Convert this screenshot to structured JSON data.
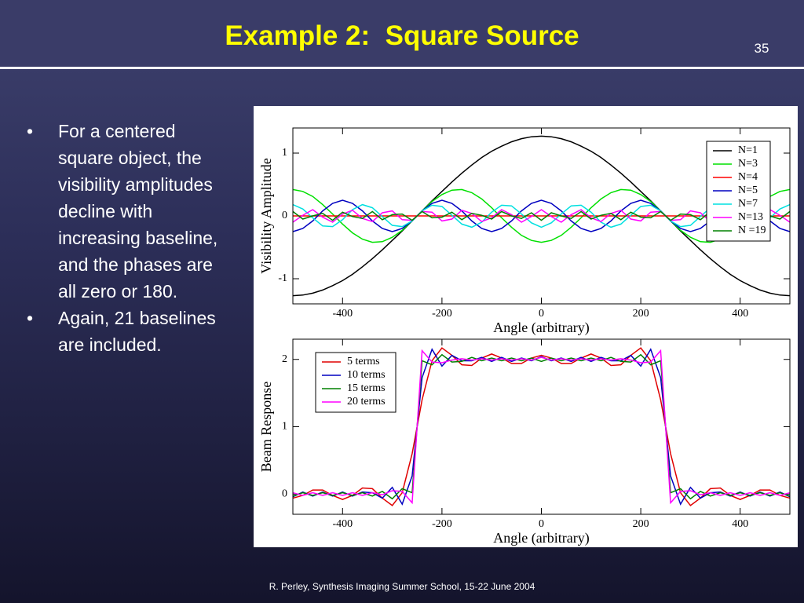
{
  "header": {
    "title": "Example 2:  Square Source",
    "page_number": "35"
  },
  "bullets": [
    "For a centered square object, the visibility amplitudes decline with increasing baseline, and the phases are all zero or 180.",
    "Again, 21 baselines are included."
  ],
  "footer": "R. Perley, Synthesis Imaging Summer School, 15-22 June 2004",
  "chart_data": [
    {
      "type": "line",
      "xlabel": "Angle (arbitrary)",
      "ylabel": "Visibility Amplitude",
      "xlim": [
        -500,
        500
      ],
      "ylim": [
        -1.4,
        1.4
      ],
      "xticks": [
        -400,
        -200,
        0,
        200,
        400
      ],
      "yticks": [
        -1,
        0,
        1
      ],
      "legend": "upper right",
      "x": [
        -500,
        -480,
        -460,
        -440,
        -420,
        -400,
        -380,
        -360,
        -340,
        -320,
        -300,
        -280,
        -260,
        -240,
        -220,
        -200,
        -180,
        -160,
        -140,
        -120,
        -100,
        -80,
        -60,
        -40,
        -20,
        0,
        20,
        40,
        60,
        80,
        100,
        120,
        140,
        160,
        180,
        200,
        220,
        240,
        260,
        280,
        300,
        320,
        340,
        360,
        380,
        400,
        420,
        440,
        460,
        480,
        500
      ],
      "series": [
        {
          "name": "N=1",
          "color": "#000000",
          "values": [
            -1.27,
            -1.26,
            -1.23,
            -1.18,
            -1.11,
            -1.03,
            -0.93,
            -0.81,
            -0.68,
            -0.54,
            -0.39,
            -0.24,
            -0.08,
            0.08,
            0.24,
            0.39,
            0.54,
            0.68,
            0.81,
            0.93,
            1.03,
            1.11,
            1.18,
            1.23,
            1.26,
            1.27,
            1.26,
            1.23,
            1.18,
            1.11,
            1.03,
            0.93,
            0.81,
            0.68,
            0.54,
            0.39,
            0.24,
            0.08,
            -0.08,
            -0.24,
            -0.39,
            -0.54,
            -0.68,
            -0.81,
            -0.93,
            -1.03,
            -1.11,
            -1.18,
            -1.23,
            -1.26,
            -1.27
          ]
        },
        {
          "name": "N=3",
          "color": "#00e000",
          "values": [
            0.42,
            0.39,
            0.31,
            0.18,
            0.03,
            -0.13,
            -0.27,
            -0.37,
            -0.42,
            -0.41,
            -0.34,
            -0.23,
            -0.08,
            0.08,
            0.23,
            0.34,
            0.41,
            0.42,
            0.37,
            0.27,
            0.13,
            -0.03,
            -0.18,
            -0.31,
            -0.39,
            -0.42,
            -0.39,
            -0.31,
            -0.18,
            -0.03,
            0.13,
            0.27,
            0.37,
            0.42,
            0.41,
            0.34,
            0.23,
            0.08,
            -0.08,
            -0.23,
            -0.34,
            -0.41,
            -0.42,
            -0.37,
            -0.27,
            -0.13,
            0.03,
            0.18,
            0.31,
            0.39,
            0.42
          ]
        },
        {
          "name": "N=4",
          "color": "#ff0000",
          "values": [
            0,
            0,
            0,
            0,
            0,
            0,
            0,
            0,
            0,
            0,
            0,
            0,
            0,
            0,
            0,
            0,
            0,
            0,
            0,
            0,
            0,
            0,
            0,
            0,
            0,
            0,
            0,
            0,
            0,
            0,
            0,
            0,
            0,
            0,
            0,
            0,
            0,
            0,
            0,
            0,
            0,
            0,
            0,
            0,
            0,
            0,
            0,
            0,
            0,
            0,
            0
          ]
        },
        {
          "name": "N=5",
          "color": "#0000c0",
          "values": [
            -0.25,
            -0.2,
            -0.08,
            0.08,
            0.2,
            0.25,
            0.2,
            0.08,
            -0.08,
            -0.2,
            -0.25,
            -0.2,
            -0.08,
            0.08,
            0.2,
            0.25,
            0.2,
            0.08,
            -0.08,
            -0.2,
            -0.25,
            -0.2,
            -0.08,
            0.08,
            0.2,
            0.25,
            0.2,
            0.08,
            -0.08,
            -0.2,
            -0.25,
            -0.2,
            -0.08,
            0.08,
            0.2,
            0.25,
            0.2,
            0.08,
            -0.08,
            -0.2,
            -0.25,
            -0.2,
            -0.08,
            0.08,
            0.2,
            0.25,
            0.2,
            0.08,
            -0.08,
            -0.2,
            -0.25
          ]
        },
        {
          "name": "N=7",
          "color": "#00e0e0",
          "values": [
            0.18,
            0.11,
            -0.03,
            -0.16,
            -0.17,
            -0.06,
            0.1,
            0.18,
            0.13,
            -0.01,
            -0.15,
            -0.17,
            -0.08,
            0.08,
            0.17,
            0.15,
            0.01,
            -0.13,
            -0.18,
            -0.1,
            0.06,
            0.17,
            0.16,
            0.03,
            -0.11,
            -0.18,
            -0.11,
            0.03,
            0.16,
            0.17,
            0.06,
            -0.1,
            -0.18,
            -0.13,
            0.01,
            0.15,
            0.17,
            0.08,
            -0.08,
            -0.17,
            -0.15,
            -0.01,
            0.13,
            0.18,
            0.1,
            -0.06,
            -0.17,
            -0.16,
            -0.03,
            0.11,
            0.18
          ]
        },
        {
          "name": "N=13",
          "color": "#ff00ff",
          "values": [
            -0.1,
            0.01,
            0.1,
            -0.02,
            -0.1,
            0.03,
            0.09,
            -0.04,
            -0.09,
            0.05,
            0.08,
            -0.06,
            -0.07,
            0.07,
            0.06,
            -0.08,
            -0.05,
            0.09,
            0.04,
            -0.09,
            -0.03,
            0.1,
            0.02,
            -0.1,
            -0.01,
            0.1,
            -0.01,
            -0.1,
            0.02,
            0.1,
            -0.03,
            -0.09,
            0.04,
            0.09,
            -0.05,
            -0.08,
            0.06,
            0.07,
            -0.07,
            -0.06,
            0.08,
            0.05,
            -0.09,
            -0.04,
            0.09,
            0.03,
            -0.1,
            -0.02,
            0.1,
            0.01,
            -0.1
          ]
        },
        {
          "name": "N =19",
          "color": "#008000",
          "values": [
            0.07,
            -0.05,
            0,
            0.04,
            -0.07,
            0.06,
            -0.01,
            -0.04,
            0.07,
            -0.06,
            0.02,
            0.03,
            -0.07,
            0.07,
            -0.03,
            -0.02,
            0.06,
            -0.06,
            0.04,
            0.01,
            -0.05,
            0.07,
            0,
            -0.04,
            0.05,
            -0.07,
            0.05,
            0,
            -0.04,
            0.07,
            -0.05,
            0.01,
            0.04,
            -0.06,
            0.06,
            -0.02,
            -0.03,
            0.07,
            -0.07,
            0.03,
            0.02,
            -0.06,
            0.07,
            -0.04,
            -0.01,
            0.06,
            -0.07,
            0.04,
            0,
            -0.05,
            0.07
          ]
        }
      ]
    },
    {
      "type": "line",
      "xlabel": "Angle (arbitrary)",
      "ylabel": "Beam Response",
      "xlim": [
        -500,
        500
      ],
      "ylim": [
        -0.3,
        2.3
      ],
      "xticks": [
        -400,
        -200,
        0,
        200,
        400
      ],
      "yticks": [
        0,
        1,
        2
      ],
      "legend": "upper left",
      "x": [
        -500,
        -480,
        -460,
        -440,
        -420,
        -400,
        -380,
        -360,
        -340,
        -320,
        -300,
        -280,
        -260,
        -240,
        -220,
        -200,
        -180,
        -160,
        -140,
        -120,
        -100,
        -80,
        -60,
        -40,
        -20,
        0,
        20,
        40,
        60,
        80,
        100,
        120,
        140,
        160,
        180,
        200,
        220,
        240,
        260,
        280,
        300,
        320,
        340,
        360,
        380,
        400,
        420,
        440,
        460,
        480,
        500
      ],
      "series": [
        {
          "name": "5 terms",
          "color": "#e00000",
          "values": [
            -0.06,
            -0.02,
            0.06,
            0.06,
            -0.02,
            -0.08,
            -0.02,
            0.09,
            0.08,
            -0.06,
            -0.17,
            0.02,
            0.6,
            1.4,
            1.98,
            2.17,
            2.06,
            1.92,
            1.91,
            2.02,
            2.08,
            2.02,
            1.94,
            1.94,
            2.02,
            2.06,
            2.02,
            1.94,
            1.94,
            2.02,
            2.08,
            2.02,
            1.91,
            1.92,
            2.06,
            2.17,
            1.98,
            1.4,
            0.6,
            0.02,
            -0.17,
            -0.06,
            0.08,
            0.09,
            -0.02,
            -0.08,
            -0.02,
            0.06,
            0.06,
            -0.02,
            -0.06
          ]
        },
        {
          "name": "10 terms",
          "color": "#0000c0",
          "values": [
            -0.04,
            0.03,
            -0.03,
            0.03,
            -0.03,
            0.03,
            -0.03,
            0.03,
            0.02,
            -0.06,
            0.1,
            -0.15,
            0.27,
            1.73,
            2.15,
            1.9,
            2.06,
            1.98,
            1.98,
            2.03,
            1.97,
            2.03,
            1.97,
            2.02,
            1.98,
            2.04,
            1.98,
            2.02,
            1.97,
            2.03,
            1.97,
            2.03,
            1.98,
            1.98,
            2.06,
            1.9,
            2.15,
            1.73,
            0.27,
            -0.15,
            0.1,
            -0.06,
            0.02,
            0.03,
            -0.03,
            0.03,
            -0.03,
            0.03,
            -0.03,
            0.03,
            -0.04
          ]
        },
        {
          "name": "15 terms",
          "color": "#008000",
          "values": [
            -0.03,
            0.02,
            -0.02,
            0.02,
            -0.02,
            0.02,
            -0.02,
            0.02,
            -0.03,
            0.04,
            -0.07,
            0.08,
            0.02,
            1.98,
            1.92,
            2.07,
            1.96,
            1.97,
            2.03,
            1.98,
            2.02,
            1.98,
            2.02,
            1.98,
            2.02,
            1.97,
            2.02,
            1.98,
            2.02,
            1.98,
            2.02,
            1.98,
            2.03,
            1.97,
            1.96,
            2.07,
            1.92,
            1.98,
            0.02,
            0.08,
            -0.07,
            0.04,
            -0.03,
            0.02,
            -0.02,
            0.02,
            -0.02,
            0.02,
            -0.02,
            0.02,
            -0.03
          ]
        },
        {
          "name": "20 terms",
          "color": "#ff00ff",
          "values": [
            0.02,
            -0.02,
            0.02,
            -0.02,
            0.02,
            -0.02,
            0.02,
            -0.02,
            0.02,
            -0.01,
            0.05,
            0.04,
            -0.13,
            2.13,
            1.96,
            1.95,
            1.99,
            2.01,
            1.99,
            2.01,
            1.99,
            2.01,
            1.99,
            2.01,
            1.99,
            2.03,
            1.99,
            2.01,
            1.99,
            2.01,
            1.99,
            2.01,
            1.99,
            2.01,
            1.99,
            1.95,
            1.96,
            2.13,
            -0.13,
            0.04,
            0.05,
            -0.01,
            0.02,
            -0.02,
            0.02,
            -0.02,
            0.02,
            -0.02,
            0.02,
            -0.02,
            0.02
          ]
        }
      ]
    }
  ]
}
